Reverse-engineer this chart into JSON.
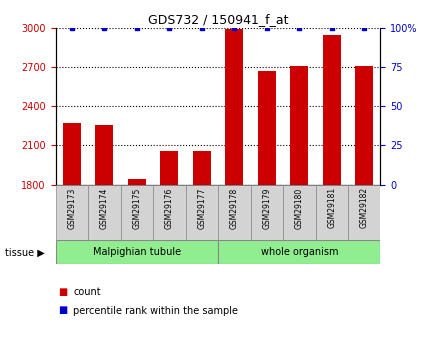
{
  "title": "GDS732 / 150941_f_at",
  "samples": [
    "GSM29173",
    "GSM29174",
    "GSM29175",
    "GSM29176",
    "GSM29177",
    "GSM29178",
    "GSM29179",
    "GSM29180",
    "GSM29181",
    "GSM29182"
  ],
  "counts": [
    2270,
    2255,
    1840,
    2060,
    2060,
    2990,
    2665,
    2710,
    2940,
    2710
  ],
  "percentiles": [
    100,
    100,
    100,
    100,
    100,
    100,
    100,
    100,
    100,
    100
  ],
  "bar_color": "#cc0000",
  "dot_color": "#0000cc",
  "ylim_left": [
    1800,
    3000
  ],
  "ylim_right": [
    0,
    100
  ],
  "yticks_left": [
    1800,
    2100,
    2400,
    2700,
    3000
  ],
  "yticks_right": [
    0,
    25,
    50,
    75,
    100
  ],
  "left_axis_color": "#cc0000",
  "right_axis_color": "#0000cc",
  "tissue_label": "tissue",
  "group_label_1": "Malpighian tubule",
  "group_label_2": "whole organism",
  "group_split": 5,
  "group_color": "#90EE90",
  "sample_box_color": "#d3d3d3",
  "legend_count_label": "count",
  "legend_percentile_label": "percentile rank within the sample"
}
